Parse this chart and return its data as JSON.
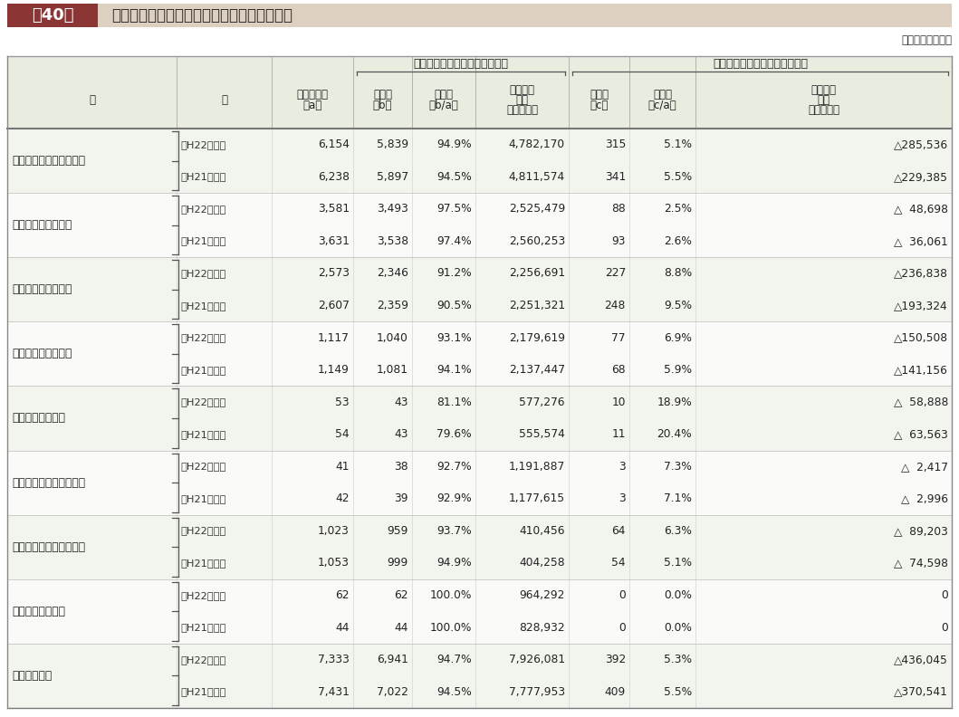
{
  "title_box": "第40表",
  "title_text": "第三セクター等の純資産又は正味財産の状況",
  "unit_text": "（単位　百万円）",
  "title_box_bg": "#8b3535",
  "title_bar_bg": "#ddd0c0",
  "table_header_bg": "#e8ede0",
  "row_bg_even": "#f2f5ee",
  "row_bg_odd": "#fafaf8",
  "group_header1": "資産が負債を上回っている法人",
  "group_header2": "負債が資産を上回っている法人",
  "rows": [
    {
      "ku": "第　三　セ　ク　タ　ー",
      "rows": [
        {
          "label": "（H22調査）",
          "a": "6,154",
          "b": "5,839",
          "ba": "94.9%",
          "net1": "4,782,170",
          "c": "315",
          "ca": "5.1%",
          "net2": "△285,536"
        },
        {
          "label": "（H21調査）",
          "a": "6,238",
          "b": "5,897",
          "ba": "94.5%",
          "net1": "4,811,574",
          "c": "341",
          "ca": "5.5%",
          "net2": "△229,385"
        }
      ]
    },
    {
      "ku": "社団法人・財団法人",
      "rows": [
        {
          "label": "（H22調査）",
          "a": "3,581",
          "b": "3,493",
          "ba": "97.5%",
          "net1": "2,525,479",
          "c": "88",
          "ca": "2.5%",
          "net2": "△  48,698"
        },
        {
          "label": "（H21調査）",
          "a": "3,631",
          "b": "3,538",
          "ba": "97.4%",
          "net1": "2,560,253",
          "c": "93",
          "ca": "2.6%",
          "net2": "△  36,061"
        }
      ]
    },
    {
      "ku": "会　社　法　法　人",
      "rows": [
        {
          "label": "（H22調査）",
          "a": "2,573",
          "b": "2,346",
          "ba": "91.2%",
          "net1": "2,256,691",
          "c": "227",
          "ca": "8.8%",
          "net2": "△236,838"
        },
        {
          "label": "（H21調査）",
          "a": "2,607",
          "b": "2,359",
          "ba": "90.5%",
          "net1": "2,251,321",
          "c": "248",
          "ca": "9.5%",
          "net2": "△193,324"
        }
      ]
    },
    {
      "ku": "地　方　三　公　社",
      "rows": [
        {
          "label": "（H22調査）",
          "a": "1,117",
          "b": "1,040",
          "ba": "93.1%",
          "net1": "2,179,619",
          "c": "77",
          "ca": "6.9%",
          "net2": "△150,508"
        },
        {
          "label": "（H21調査）",
          "a": "1,149",
          "b": "1,081",
          "ba": "94.1%",
          "net1": "2,137,447",
          "c": "68",
          "ca": "5.9%",
          "net2": "△141,156"
        }
      ]
    },
    {
      "ku": "地方住宅供給公社",
      "rows": [
        {
          "label": "（H22調査）",
          "a": "53",
          "b": "43",
          "ba": "81.1%",
          "net1": "577,276",
          "c": "10",
          "ca": "18.9%",
          "net2": "△  58,888"
        },
        {
          "label": "（H21調査）",
          "a": "54",
          "b": "43",
          "ba": "79.6%",
          "net1": "555,574",
          "c": "11",
          "ca": "20.4%",
          "net2": "△  63,563"
        }
      ]
    },
    {
      "ku": "地　方　道　路　公　社",
      "rows": [
        {
          "label": "（H22調査）",
          "a": "41",
          "b": "38",
          "ba": "92.7%",
          "net1": "1,191,887",
          "c": "3",
          "ca": "7.3%",
          "net2": "△  2,417"
        },
        {
          "label": "（H21調査）",
          "a": "42",
          "b": "39",
          "ba": "92.9%",
          "net1": "1,177,615",
          "c": "3",
          "ca": "7.1%",
          "net2": "△  2,996"
        }
      ]
    },
    {
      "ku": "土　地　開　発　公　社",
      "rows": [
        {
          "label": "（H22調査）",
          "a": "1,023",
          "b": "959",
          "ba": "93.7%",
          "net1": "410,456",
          "c": "64",
          "ca": "6.3%",
          "net2": "△  89,203"
        },
        {
          "label": "（H21調査）",
          "a": "1,053",
          "b": "999",
          "ba": "94.9%",
          "net1": "404,258",
          "c": "54",
          "ca": "5.1%",
          "net2": "△  74,598"
        }
      ]
    },
    {
      "ku": "地方独立行政法人",
      "rows": [
        {
          "label": "（H22調査）",
          "a": "62",
          "b": "62",
          "ba": "100.0%",
          "net1": "964,292",
          "c": "0",
          "ca": "0.0%",
          "net2": "0"
        },
        {
          "label": "（H21調査）",
          "a": "44",
          "b": "44",
          "ba": "100.0%",
          "net1": "828,932",
          "c": "0",
          "ca": "0.0%",
          "net2": "0"
        }
      ]
    },
    {
      "ku": "総　　　　計",
      "rows": [
        {
          "label": "（H22調査）",
          "a": "7,333",
          "b": "6,941",
          "ba": "94.7%",
          "net1": "7,926,081",
          "c": "392",
          "ca": "5.3%",
          "net2": "△436,045"
        },
        {
          "label": "（H21調査）",
          "a": "7,431",
          "b": "7,022",
          "ba": "94.5%",
          "net1": "7,777,953",
          "c": "409",
          "ca": "5.5%",
          "net2": "△370,541"
        }
      ]
    }
  ]
}
